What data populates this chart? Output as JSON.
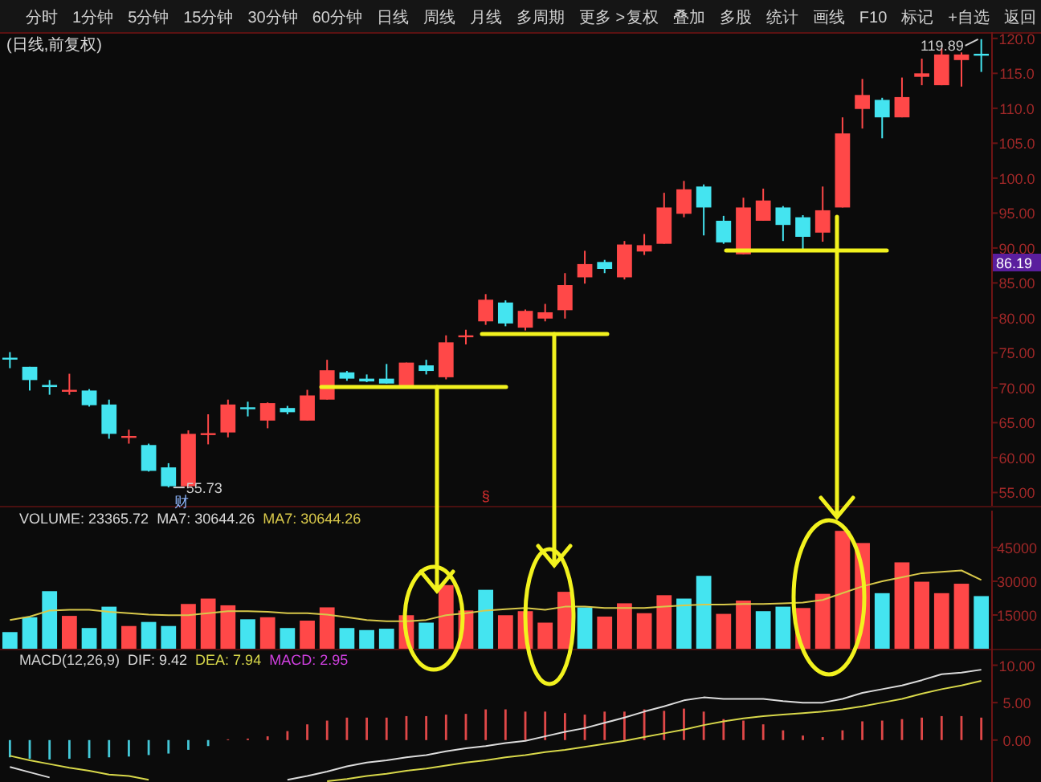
{
  "chart_data": [
    {
      "type": "other",
      "annotations": [
        "分时",
        "1分钟",
        "5分钟",
        "15分钟",
        "30分钟",
        "60分钟",
        "日线",
        "周线",
        "月线",
        "多周期",
        "更多 >"
      ]
    },
    {
      "type": "other",
      "annotations": [
        "复权",
        "叠加",
        "多股",
        "统计",
        "画线",
        "F10",
        "标记",
        "+自选",
        "返回"
      ]
    },
    {
      "type": "candlestick",
      "title": "(日线,前复权)",
      "tick_labels": "y",
      "categories": [
        null,
        null,
        null,
        null,
        null,
        null,
        null,
        null,
        null,
        null,
        null,
        null,
        null,
        null,
        null,
        null,
        null,
        null,
        null,
        null,
        null,
        null,
        null,
        null,
        null,
        null,
        null,
        null,
        null,
        null,
        null,
        null,
        null,
        null,
        null,
        null,
        null,
        null,
        null,
        null,
        null,
        null,
        null,
        null,
        null,
        null,
        null,
        null,
        null,
        null
      ],
      "ohlc": [
        [
          74.3,
          75.1,
          72.8,
          74.1
        ],
        [
          73.0,
          73.0,
          69.6,
          71.1
        ],
        [
          70.4,
          71.1,
          69.0,
          70.1
        ],
        [
          69.5,
          72.0,
          69.0,
          69.7
        ],
        [
          69.6,
          69.8,
          67.3,
          67.5
        ],
        [
          67.6,
          68.3,
          62.7,
          63.4
        ],
        [
          62.9,
          64.0,
          62.0,
          63.1
        ],
        [
          61.8,
          62.0,
          58.0,
          58.1
        ],
        [
          58.6,
          59.2,
          55.73,
          55.9
        ],
        [
          55.9,
          63.9,
          55.9,
          63.4
        ],
        [
          63.3,
          66.2,
          61.9,
          63.5
        ],
        [
          63.6,
          68.3,
          62.9,
          67.6
        ],
        [
          67.2,
          68.0,
          65.9,
          67.0
        ],
        [
          65.3,
          67.9,
          64.2,
          67.8
        ],
        [
          67.1,
          67.4,
          66.2,
          66.5
        ],
        [
          65.3,
          69.7,
          65.3,
          68.9
        ],
        [
          68.3,
          74.0,
          68.3,
          72.5
        ],
        [
          72.2,
          72.4,
          71.0,
          71.3
        ],
        [
          71.3,
          71.9,
          70.8,
          70.9
        ],
        [
          71.3,
          73.4,
          70.6,
          70.6
        ],
        [
          70.3,
          73.6,
          70.3,
          73.6
        ],
        [
          73.2,
          74.0,
          71.9,
          72.4
        ],
        [
          71.5,
          77.5,
          71.2,
          76.5
        ],
        [
          77.3,
          78.3,
          76.2,
          77.5
        ],
        [
          79.5,
          83.4,
          79.0,
          82.6
        ],
        [
          82.2,
          82.5,
          78.8,
          79.2
        ],
        [
          78.6,
          81.2,
          78.2,
          81.0
        ],
        [
          79.9,
          82.0,
          79.5,
          80.8
        ],
        [
          81.1,
          86.4,
          79.9,
          84.7
        ],
        [
          85.8,
          89.6,
          84.9,
          87.7
        ],
        [
          88.0,
          88.3,
          86.4,
          87.0
        ],
        [
          85.8,
          91.0,
          85.5,
          90.5
        ],
        [
          89.5,
          92.0,
          89.0,
          90.4
        ],
        [
          90.6,
          97.9,
          90.6,
          95.8
        ],
        [
          94.9,
          99.6,
          94.4,
          98.4
        ],
        [
          98.8,
          99.1,
          91.8,
          95.8
        ],
        [
          93.9,
          94.6,
          90.6,
          90.8
        ],
        [
          89.1,
          97.2,
          89.1,
          95.8
        ],
        [
          93.9,
          98.5,
          93.9,
          96.8
        ],
        [
          95.8,
          96.0,
          91.0,
          93.3
        ],
        [
          94.4,
          94.7,
          89.6,
          91.6
        ],
        [
          92.2,
          98.8,
          90.9,
          95.4
        ],
        [
          95.8,
          108.7,
          95.8,
          106.4
        ],
        [
          109.9,
          114.2,
          107.1,
          111.9
        ],
        [
          111.2,
          111.5,
          105.7,
          108.7
        ],
        [
          108.7,
          114.4,
          108.7,
          111.6
        ],
        [
          114.5,
          117.1,
          113.3,
          115.0
        ],
        [
          113.3,
          118.6,
          113.3,
          117.7
        ],
        [
          116.9,
          118.0,
          113.1,
          117.7
        ],
        [
          117.8,
          119.89,
          115.2,
          117.6
        ]
      ],
      "colors": [
        "#44e4f0",
        "#44e4f0",
        "#44e4f0",
        "#ff4848",
        "#44e4f0",
        "#44e4f0",
        "#ff4848",
        "#44e4f0",
        "#44e4f0",
        "#ff4848",
        "#ff4848",
        "#ff4848",
        "#44e4f0",
        "#ff4848",
        "#44e4f0",
        "#ff4848",
        "#ff4848",
        "#44e4f0",
        "#44e4f0",
        "#44e4f0",
        "#ff4848",
        "#44e4f0",
        "#ff4848",
        "#ff4848",
        "#ff4848",
        "#44e4f0",
        "#ff4848",
        "#ff4848",
        "#ff4848",
        "#ff4848",
        "#44e4f0",
        "#ff4848",
        "#ff4848",
        "#ff4848",
        "#ff4848",
        "#44e4f0",
        "#44e4f0",
        "#ff4848",
        "#ff4848",
        "#44e4f0",
        "#44e4f0",
        "#ff4848",
        "#ff4848",
        "#ff4848",
        "#44e4f0",
        "#ff4848",
        "#ff4848",
        "#ff4848",
        "#ff4848",
        "#44e4f0"
      ],
      "ylim": [
        53.1,
        120.9
      ],
      "yticks": [
        {
          "value": 55,
          "label": "55.00"
        },
        {
          "value": 60,
          "label": "60.00"
        },
        {
          "value": 65,
          "label": "65.00"
        },
        {
          "value": 70,
          "label": "70.00"
        },
        {
          "value": 75,
          "label": "75.00"
        },
        {
          "value": 80,
          "label": "80.00"
        },
        {
          "value": 85,
          "label": "85.00"
        },
        {
          "value": 90,
          "label": "90.00"
        },
        {
          "value": 95,
          "label": "95.00"
        },
        {
          "value": 100,
          "label": "100.0"
        },
        {
          "value": 105,
          "label": "105.0"
        },
        {
          "value": 110,
          "label": "110.0"
        },
        {
          "value": 115,
          "label": "115.0"
        },
        {
          "value": 120,
          "label": "120.0"
        }
      ],
      "annotations": [
        "119.89",
        "55.73",
        "财",
        "§",
        "86.19"
      ]
    },
    {
      "type": "bar",
      "tick_labels": "y",
      "categories": [
        null,
        null,
        null,
        null,
        null,
        null,
        null,
        null,
        null,
        null,
        null,
        null,
        null,
        null,
        null,
        null,
        null,
        null,
        null,
        null,
        null,
        null,
        null,
        null,
        null,
        null,
        null,
        null,
        null,
        null,
        null,
        null,
        null,
        null,
        null,
        null,
        null,
        null,
        null,
        null,
        null,
        null,
        null,
        null,
        null,
        null,
        null,
        null,
        null,
        null
      ],
      "series": [
        {
          "type": "bar",
          "color": "#d8d8d8",
          "values": [
            7400,
            14000,
            25600,
            14600,
            9200,
            18700,
            10100,
            11900,
            10100,
            19900,
            22300,
            19300,
            13100,
            14000,
            9200,
            12500,
            18400,
            9200,
            8300,
            8900,
            14900,
            11600,
            28300,
            17000,
            26200,
            14900,
            16700,
            11600,
            25300,
            18400,
            14300,
            20200,
            15800,
            23800,
            22300,
            32400,
            15500,
            21400,
            16700,
            18700,
            18100,
            24400,
            52400,
            47000,
            24700,
            38400,
            29800,
            24700,
            28900,
            23400
          ],
          "colors": [
            "#44e4f0",
            "#44e4f0",
            "#44e4f0",
            "#ff4848",
            "#44e4f0",
            "#44e4f0",
            "#ff4848",
            "#44e4f0",
            "#44e4f0",
            "#ff4848",
            "#ff4848",
            "#ff4848",
            "#44e4f0",
            "#ff4848",
            "#44e4f0",
            "#ff4848",
            "#ff4848",
            "#44e4f0",
            "#44e4f0",
            "#44e4f0",
            "#ff4848",
            "#44e4f0",
            "#ff4848",
            "#ff4848",
            "#44e4f0",
            "#ff4848",
            "#ff4848",
            "#ff4848",
            "#ff4848",
            "#44e4f0",
            "#ff4848",
            "#ff4848",
            "#ff4848",
            "#ff4848",
            "#44e4f0",
            "#44e4f0",
            "#ff4848",
            "#ff4848",
            "#44e4f0",
            "#44e4f0",
            "#ff4848",
            "#ff4848",
            "#ff4848",
            "#ff4848",
            "#44e4f0",
            "#ff4848",
            "#ff4848",
            "#ff4848",
            "#ff4848",
            "#44e4f0"
          ]
        },
        {
          "type": "line",
          "color": "#d8c84a",
          "values": [
            12800,
            14300,
            17000,
            17300,
            17300,
            16400,
            15800,
            15200,
            14900,
            14900,
            15800,
            16700,
            16700,
            16400,
            15800,
            15800,
            15200,
            14000,
            12800,
            12200,
            12200,
            12800,
            14900,
            15800,
            17000,
            17600,
            18100,
            17300,
            18700,
            18700,
            18100,
            18100,
            18100,
            18700,
            19300,
            19600,
            19600,
            19900,
            19900,
            20200,
            20500,
            21700,
            24700,
            27700,
            30000,
            31800,
            33600,
            34200,
            34800,
            30600
          ]
        }
      ],
      "ylim": [
        0,
        61400
      ],
      "yticks": [
        15000,
        30000,
        45000
      ],
      "annotations": [
        "VOLUME: 23365.72",
        "MA7: 30644.26",
        "MA7: 30644.26"
      ]
    },
    {
      "type": "bar",
      "title": "MACD(12,26,9)",
      "tick_labels": "y",
      "categories": [
        null,
        null,
        null,
        null,
        null,
        null,
        null,
        null,
        null,
        null,
        null,
        null,
        null,
        null,
        null,
        null,
        null,
        null,
        null,
        null,
        null,
        null,
        null,
        null,
        null,
        null,
        null,
        null,
        null,
        null,
        null,
        null,
        null,
        null,
        null,
        null,
        null,
        null,
        null,
        null,
        null,
        null,
        null,
        null,
        null,
        null,
        null,
        null,
        null,
        null
      ],
      "series": [
        {
          "type": "line",
          "color": "#dcdcdc",
          "values": [
            -3.6,
            -4.3,
            -5.0,
            null,
            null,
            null,
            null,
            null,
            null,
            null,
            null,
            null,
            null,
            null,
            -5.3,
            -4.8,
            -4.2,
            -3.5,
            -3.0,
            -2.7,
            -2.3,
            -2.0,
            -1.5,
            -1.1,
            -0.8,
            -0.4,
            -0.1,
            0.5,
            1.1,
            1.6,
            2.3,
            3.0,
            3.8,
            4.5,
            5.3,
            5.7,
            5.5,
            5.5,
            5.5,
            5.2,
            5.0,
            5.0,
            5.5,
            6.3,
            6.8,
            7.3,
            8.0,
            8.8,
            9.0,
            9.4
          ]
        },
        {
          "type": "line",
          "color": "#d8d84a",
          "values": [
            -2.1,
            -2.7,
            -3.2,
            -3.7,
            -4.1,
            -4.6,
            -4.8,
            -5.3,
            null,
            null,
            null,
            null,
            null,
            null,
            null,
            null,
            -5.5,
            -5.2,
            -4.8,
            -4.5,
            -4.1,
            -3.8,
            -3.4,
            -3.0,
            -2.7,
            -2.3,
            -2.0,
            -1.6,
            -1.3,
            -0.9,
            -0.5,
            -0.1,
            0.4,
            0.9,
            1.4,
            2.0,
            2.5,
            2.9,
            3.2,
            3.4,
            3.6,
            3.8,
            4.1,
            4.5,
            5.0,
            5.5,
            6.2,
            6.8,
            7.3,
            7.9
          ]
        },
        {
          "type": "bar",
          "color": "#d040e0",
          "values": [
            -2.3,
            -2.5,
            -2.6,
            -2.5,
            -2.4,
            -2.3,
            -2.2,
            -2.0,
            -1.8,
            -1.3,
            -0.8,
            0.1,
            0.2,
            0.5,
            1.2,
            2.1,
            2.6,
            3.0,
            3.0,
            3.0,
            3.2,
            3.2,
            3.4,
            3.5,
            4.1,
            4.1,
            3.8,
            3.8,
            3.6,
            3.4,
            3.8,
            3.8,
            4.1,
            3.9,
            4.2,
            3.8,
            2.8,
            2.6,
            2.1,
            1.3,
            0.6,
            0.4,
            1.3,
            2.5,
            2.6,
            2.8,
            3.0,
            3.2,
            3.2,
            3.0
          ],
          "colors": [
            "#44c8d8",
            "#44c8d8",
            "#44c8d8",
            "#44c8d8",
            "#44c8d8",
            "#44c8d8",
            "#44c8d8",
            "#44c8d8",
            "#44c8d8",
            "#44c8d8",
            "#44c8d8",
            "#e04848",
            "#e04848",
            "#e04848",
            "#e04848",
            "#e04848",
            "#e04848",
            "#e04848",
            "#e04848",
            "#e04848",
            "#e04848",
            "#e04848",
            "#e04848",
            "#e04848",
            "#e04848",
            "#e04848",
            "#e04848",
            "#e04848",
            "#e04848",
            "#e04848",
            "#e04848",
            "#e04848",
            "#e04848",
            "#e04848",
            "#e04848",
            "#e04848",
            "#e04848",
            "#e04848",
            "#e04848",
            "#e04848",
            "#e04848",
            "#e04848",
            "#e04848",
            "#e04848",
            "#e04848",
            "#e04848",
            "#e04848",
            "#e04848",
            "#e04848",
            "#e04848"
          ]
        }
      ],
      "ylim": [
        -5.6,
        12.2
      ],
      "yticks": [
        {
          "value": 0,
          "label": "0.00"
        },
        {
          "value": 5,
          "label": "5.00"
        },
        {
          "value": 10,
          "label": "10.00"
        }
      ],
      "annotations": [
        "DIF: 9.42",
        "DEA: 7.94",
        "MACD: 2.95"
      ]
    }
  ]
}
